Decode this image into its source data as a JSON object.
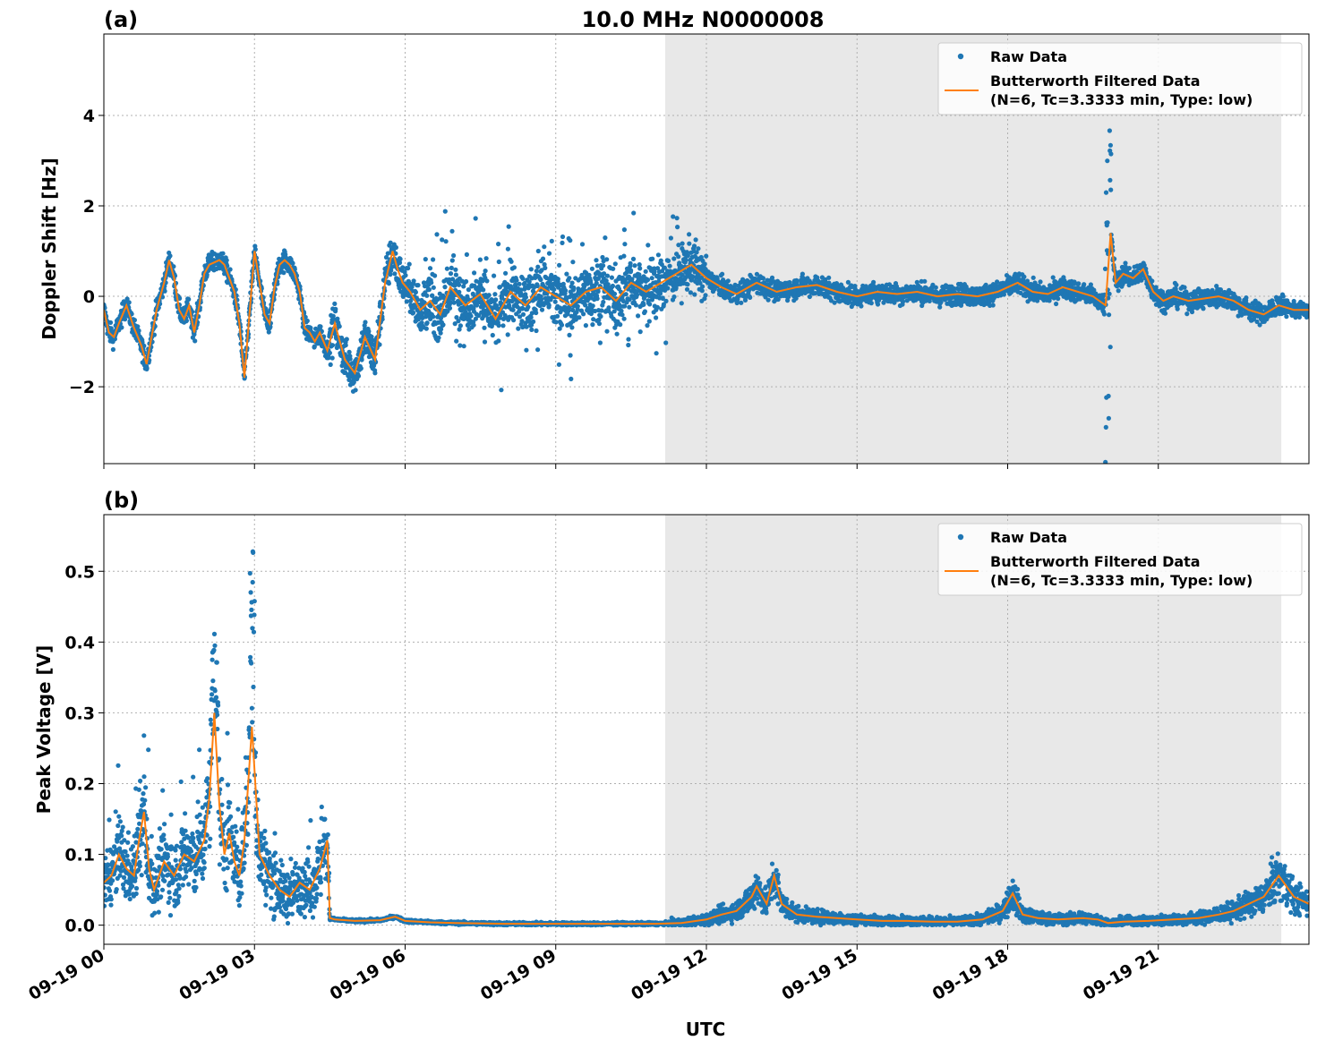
{
  "title": "10.0 MHz N0000008",
  "xlabel": "UTC",
  "colors": {
    "raw": "#1f77b4",
    "filtered": "#ff7f0e",
    "shade": "#e8e8e8",
    "grid": "#b0b0b0"
  },
  "legend": {
    "raw": "Raw Data",
    "filtered_line1": "Butterworth Filtered Data",
    "filtered_line2": "(N=6, Tc=3.3333 min, Type: low)"
  },
  "chart_data": [
    {
      "type": "scatter",
      "panel": "(a)",
      "ylabel": "Doppler Shift [Hz]",
      "xlim_hours": [
        0,
        24
      ],
      "ylim": [
        -3.7,
        5.8
      ],
      "yticks": [
        -2,
        0,
        2,
        4
      ],
      "ytick_labels": [
        "−2",
        "0",
        "2",
        "4"
      ],
      "xtick_labels": [
        "09-19 00",
        "09-19 03",
        "09-19 06",
        "09-19 09",
        "09-19 12",
        "09-19 15",
        "09-19 18",
        "09-19 21"
      ],
      "xtick_hours": [
        0,
        3,
        6,
        9,
        12,
        15,
        18,
        21
      ],
      "shade_hours": [
        11.18,
        23.45
      ],
      "legend_position": "top-right",
      "grid": true,
      "series": [
        {
          "name": "Raw Data",
          "style": "points"
        },
        {
          "name": "Butterworth Filtered Data (N=6, Tc=3.3333 min, Type: low)",
          "style": "line",
          "x_hours": [
            0,
            0.1,
            0.2,
            0.3,
            0.45,
            0.6,
            0.75,
            0.85,
            0.95,
            1.05,
            1.2,
            1.3,
            1.4,
            1.5,
            1.6,
            1.7,
            1.8,
            1.9,
            2.0,
            2.1,
            2.2,
            2.3,
            2.4,
            2.5,
            2.6,
            2.7,
            2.8,
            2.9,
            3.0,
            3.1,
            3.2,
            3.3,
            3.4,
            3.5,
            3.6,
            3.7,
            3.8,
            3.9,
            4.0,
            4.1,
            4.2,
            4.3,
            4.45,
            4.6,
            4.8,
            5.0,
            5.2,
            5.4,
            5.6,
            5.75,
            5.85,
            5.95,
            6.1,
            6.3,
            6.5,
            6.7,
            6.9,
            7.2,
            7.5,
            7.8,
            8.1,
            8.4,
            8.7,
            9.0,
            9.3,
            9.6,
            9.9,
            10.2,
            10.5,
            10.8,
            11.1,
            11.4,
            11.7,
            12.0,
            12.3,
            12.6,
            13.0,
            13.4,
            13.8,
            14.2,
            14.6,
            15.0,
            15.4,
            15.8,
            16.2,
            16.6,
            17.0,
            17.4,
            17.8,
            18.2,
            18.5,
            18.8,
            19.1,
            19.4,
            19.7,
            19.95,
            20.05,
            20.15,
            20.3,
            20.5,
            20.7,
            20.9,
            21.1,
            21.3,
            21.6,
            21.9,
            22.2,
            22.5,
            22.8,
            23.1,
            23.4,
            23.7,
            24.0
          ],
          "y": [
            -0.3,
            -0.8,
            -0.9,
            -0.6,
            -0.2,
            -0.7,
            -1.1,
            -1.5,
            -0.9,
            -0.3,
            0.3,
            0.8,
            0.4,
            -0.3,
            -0.5,
            -0.2,
            -0.8,
            -0.2,
            0.5,
            0.7,
            0.75,
            0.8,
            0.7,
            0.4,
            0.1,
            -0.6,
            -1.8,
            -0.4,
            1.0,
            0.3,
            -0.4,
            -0.6,
            0.2,
            0.7,
            0.8,
            0.7,
            0.5,
            0.1,
            -0.7,
            -0.8,
            -1.0,
            -0.8,
            -1.2,
            -0.6,
            -1.4,
            -1.7,
            -0.9,
            -1.4,
            0.3,
            1.0,
            0.6,
            0.3,
            0.1,
            -0.3,
            -0.1,
            -0.4,
            0.2,
            -0.2,
            0.05,
            -0.5,
            0.1,
            -0.2,
            0.2,
            0.0,
            -0.2,
            0.1,
            0.2,
            -0.1,
            0.3,
            0.1,
            0.3,
            0.5,
            0.7,
            0.4,
            0.2,
            0.05,
            0.3,
            0.1,
            0.2,
            0.25,
            0.1,
            0.0,
            0.1,
            0.05,
            0.1,
            0.0,
            0.05,
            0.0,
            0.1,
            0.3,
            0.1,
            0.05,
            0.2,
            0.1,
            0.0,
            -0.2,
            1.4,
            0.3,
            0.5,
            0.4,
            0.6,
            0.1,
            -0.1,
            0.0,
            -0.1,
            -0.05,
            0.0,
            -0.1,
            -0.3,
            -0.4,
            -0.2,
            -0.3,
            -0.3
          ]
        }
      ]
    },
    {
      "type": "scatter",
      "panel": "(b)",
      "ylabel": "Peak Voltage [V]",
      "xlim_hours": [
        0,
        24
      ],
      "ylim": [
        -0.027,
        0.58
      ],
      "yticks": [
        0.0,
        0.1,
        0.2,
        0.3,
        0.4,
        0.5
      ],
      "ytick_labels": [
        "0.0",
        "0.1",
        "0.2",
        "0.3",
        "0.4",
        "0.5"
      ],
      "xtick_labels": [
        "09-19 00",
        "09-19 03",
        "09-19 06",
        "09-19 09",
        "09-19 12",
        "09-19 15",
        "09-19 18",
        "09-19 21"
      ],
      "xtick_hours": [
        0,
        3,
        6,
        9,
        12,
        15,
        18,
        21
      ],
      "shade_hours": [
        11.18,
        23.45
      ],
      "legend_position": "top-right",
      "grid": true,
      "series": [
        {
          "name": "Raw Data",
          "style": "points"
        },
        {
          "name": "Butterworth Filtered Data (N=6, Tc=3.3333 min, Type: low)",
          "style": "line",
          "x_hours": [
            0,
            0.15,
            0.3,
            0.45,
            0.6,
            0.7,
            0.8,
            0.9,
            1.0,
            1.2,
            1.4,
            1.6,
            1.8,
            2.0,
            2.1,
            2.2,
            2.3,
            2.4,
            2.5,
            2.6,
            2.7,
            2.8,
            2.95,
            3.1,
            3.3,
            3.5,
            3.7,
            3.9,
            4.1,
            4.3,
            4.45,
            4.5,
            4.6,
            5.0,
            5.5,
            5.8,
            6.0,
            6.5,
            7.0,
            8.0,
            9.0,
            10.0,
            11.0,
            11.5,
            12.0,
            12.3,
            12.6,
            12.9,
            13.0,
            13.2,
            13.35,
            13.5,
            13.8,
            14.2,
            14.6,
            15.0,
            15.5,
            16.0,
            16.5,
            17.0,
            17.5,
            17.9,
            18.1,
            18.3,
            18.6,
            19.0,
            19.5,
            19.8,
            20.0,
            20.3,
            20.8,
            21.3,
            21.8,
            22.2,
            22.5,
            22.8,
            23.1,
            23.4,
            23.7,
            24.0
          ],
          "y": [
            0.06,
            0.07,
            0.1,
            0.08,
            0.07,
            0.12,
            0.16,
            0.08,
            0.05,
            0.09,
            0.07,
            0.1,
            0.09,
            0.12,
            0.18,
            0.3,
            0.17,
            0.1,
            0.13,
            0.09,
            0.07,
            0.12,
            0.28,
            0.1,
            0.07,
            0.05,
            0.04,
            0.06,
            0.05,
            0.08,
            0.12,
            0.01,
            0.008,
            0.006,
            0.007,
            0.012,
            0.006,
            0.004,
            0.003,
            0.002,
            0.002,
            0.002,
            0.002,
            0.003,
            0.008,
            0.015,
            0.02,
            0.04,
            0.055,
            0.03,
            0.07,
            0.03,
            0.015,
            0.012,
            0.01,
            0.008,
            0.006,
            0.006,
            0.005,
            0.005,
            0.008,
            0.02,
            0.045,
            0.015,
            0.01,
            0.008,
            0.01,
            0.008,
            0.003,
            0.005,
            0.006,
            0.008,
            0.01,
            0.015,
            0.02,
            0.03,
            0.04,
            0.07,
            0.04,
            0.03
          ]
        }
      ]
    }
  ]
}
